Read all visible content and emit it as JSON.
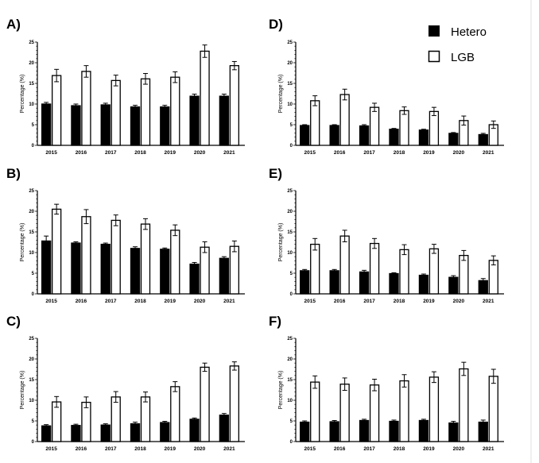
{
  "legend": {
    "series": [
      {
        "name": "Hetero",
        "color": "#000000"
      },
      {
        "name": "LGB",
        "color": "#ffffff"
      }
    ],
    "placement": "top-right"
  },
  "chart_data": [
    {
      "panel": "A)",
      "type": "bar",
      "categories": [
        "2015",
        "2016",
        "2017",
        "2018",
        "2019",
        "2020",
        "2021"
      ],
      "ylabel": "Percentage (%)",
      "ylim": [
        0,
        25
      ],
      "yticks": [
        "0",
        "5",
        "10",
        "15",
        "20",
        "25"
      ],
      "series": [
        {
          "name": "Hetero",
          "values": [
            10.0,
            9.6,
            9.8,
            9.3,
            9.3,
            11.9,
            11.9
          ],
          "errors": [
            0.4,
            0.4,
            0.4,
            0.4,
            0.4,
            0.5,
            0.5
          ]
        },
        {
          "name": "LGB",
          "values": [
            16.9,
            17.9,
            15.7,
            16.1,
            16.5,
            22.8,
            19.3
          ],
          "errors": [
            1.5,
            1.4,
            1.3,
            1.3,
            1.3,
            1.5,
            1.0
          ]
        }
      ]
    },
    {
      "panel": "D)",
      "type": "bar",
      "categories": [
        "2015",
        "2016",
        "2017",
        "2018",
        "2019",
        "2020",
        "2021"
      ],
      "ylabel": "Percentage (%)",
      "ylim": [
        0,
        25
      ],
      "yticks": [
        "0",
        "5",
        "10",
        "15",
        "20",
        "25"
      ],
      "series": [
        {
          "name": "Hetero",
          "values": [
            4.8,
            4.8,
            4.7,
            3.9,
            3.7,
            2.9,
            2.6
          ],
          "errors": [
            0.2,
            0.2,
            0.3,
            0.2,
            0.2,
            0.2,
            0.3
          ]
        },
        {
          "name": "LGB",
          "values": [
            10.8,
            12.3,
            9.2,
            8.4,
            8.2,
            6.0,
            5.0
          ],
          "errors": [
            1.2,
            1.3,
            1.0,
            0.9,
            1.0,
            1.1,
            0.9
          ]
        }
      ]
    },
    {
      "panel": "B)",
      "type": "bar",
      "categories": [
        "2015",
        "2016",
        "2017",
        "2018",
        "2019",
        "2020",
        "2021"
      ],
      "ylabel": "Percentage (%)",
      "ylim": [
        0,
        25
      ],
      "yticks": [
        "0",
        "5",
        "10",
        "15",
        "20",
        "25"
      ],
      "series": [
        {
          "name": "Hetero",
          "values": [
            12.8,
            12.3,
            12.0,
            11.0,
            10.8,
            7.2,
            8.6
          ],
          "errors": [
            1.2,
            0.3,
            0.3,
            0.4,
            0.3,
            0.4,
            0.4
          ]
        },
        {
          "name": "LGB",
          "values": [
            20.5,
            18.7,
            17.8,
            16.9,
            15.4,
            11.3,
            11.5
          ],
          "errors": [
            1.2,
            1.7,
            1.3,
            1.3,
            1.3,
            1.3,
            1.3
          ]
        }
      ]
    },
    {
      "panel": "E)",
      "type": "bar",
      "categories": [
        "2015",
        "2016",
        "2017",
        "2018",
        "2019",
        "2020",
        "2021"
      ],
      "ylabel": "Percentage (%)",
      "ylim": [
        0,
        25
      ],
      "yticks": [
        "0",
        "5",
        "10",
        "15",
        "20",
        "25"
      ],
      "series": [
        {
          "name": "Hetero",
          "values": [
            5.6,
            5.6,
            5.3,
            4.9,
            4.5,
            4.0,
            3.2
          ],
          "errors": [
            0.3,
            0.3,
            0.4,
            0.2,
            0.3,
            0.4,
            0.5
          ]
        },
        {
          "name": "LGB",
          "values": [
            12.0,
            14.0,
            12.2,
            10.7,
            10.9,
            9.3,
            8.1
          ],
          "errors": [
            1.4,
            1.4,
            1.2,
            1.2,
            1.1,
            1.2,
            1.1
          ]
        }
      ]
    },
    {
      "panel": "C)",
      "type": "bar",
      "categories": [
        "2015",
        "2016",
        "2017",
        "2018",
        "2019",
        "2020",
        "2021"
      ],
      "ylabel": "Percentage (%)",
      "ylim": [
        0,
        25
      ],
      "yticks": [
        "0",
        "5",
        "10",
        "15",
        "20",
        "25"
      ],
      "series": [
        {
          "name": "Hetero",
          "values": [
            3.8,
            3.9,
            4.0,
            4.3,
            4.6,
            5.4,
            6.4
          ],
          "errors": [
            0.3,
            0.3,
            0.3,
            0.4,
            0.3,
            0.3,
            0.4
          ]
        },
        {
          "name": "LGB",
          "values": [
            9.6,
            9.5,
            10.8,
            10.8,
            13.3,
            18.0,
            18.3
          ],
          "errors": [
            1.3,
            1.3,
            1.3,
            1.2,
            1.2,
            1.0,
            1.0
          ]
        }
      ]
    },
    {
      "panel": "F)",
      "type": "bar",
      "categories": [
        "2015",
        "2016",
        "2017",
        "2018",
        "2019",
        "2020",
        "2021"
      ],
      "ylabel": "Percentage (%)",
      "ylim": [
        0,
        25
      ],
      "yticks": [
        "0",
        "5",
        "10",
        "15",
        "20",
        "25"
      ],
      "series": [
        {
          "name": "Hetero",
          "values": [
            4.7,
            4.8,
            5.1,
            4.9,
            5.1,
            4.5,
            4.7
          ],
          "errors": [
            0.3,
            0.3,
            0.3,
            0.3,
            0.3,
            0.4,
            0.5
          ]
        },
        {
          "name": "LGB",
          "values": [
            14.4,
            13.9,
            13.7,
            14.7,
            15.6,
            17.6,
            15.8
          ],
          "errors": [
            1.5,
            1.5,
            1.4,
            1.5,
            1.3,
            1.6,
            1.7
          ]
        }
      ]
    }
  ]
}
